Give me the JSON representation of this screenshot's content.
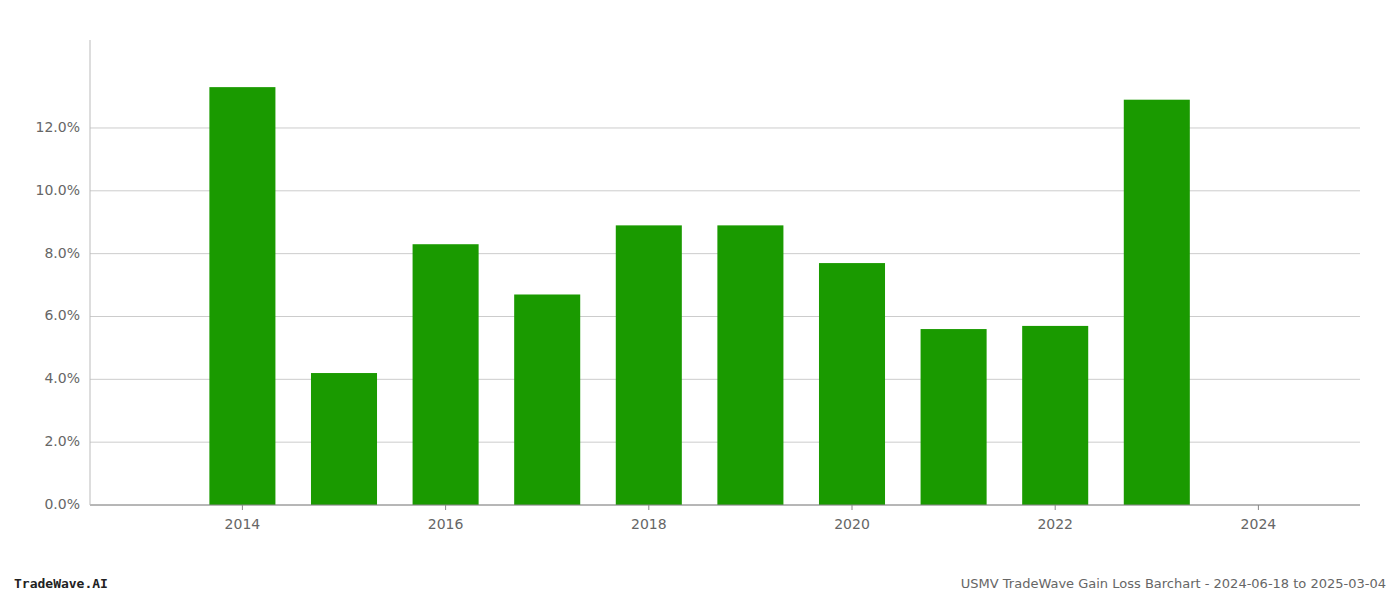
{
  "chart_data": {
    "type": "bar",
    "x": [
      2014,
      2015,
      2016,
      2017,
      2018,
      2019,
      2020,
      2021,
      2022,
      2023
    ],
    "values": [
      0.133,
      0.042,
      0.083,
      0.067,
      0.089,
      0.089,
      0.077,
      0.056,
      0.057,
      0.129
    ],
    "color": "#1a9a00",
    "xlim": [
      2012.5,
      2025.0
    ],
    "xticks": [
      2014,
      2016,
      2018,
      2020,
      2022,
      2024
    ],
    "ylim": [
      0.0,
      0.148
    ],
    "yticks": [
      {
        "value": 0.0,
        "label": "0.0%"
      },
      {
        "value": 0.02,
        "label": "2.0%"
      },
      {
        "value": 0.04,
        "label": "4.0%"
      },
      {
        "value": 0.06,
        "label": "6.0%"
      },
      {
        "value": 0.08,
        "label": "8.0%"
      },
      {
        "value": 0.1,
        "label": "10.0%"
      },
      {
        "value": 0.12,
        "label": "12.0%"
      }
    ],
    "grid": true,
    "annotations": [
      "TradeWave.AI",
      "USMV TradeWave Gain Loss Barchart - 2024-06-18 to 2025-03-04"
    ]
  }
}
